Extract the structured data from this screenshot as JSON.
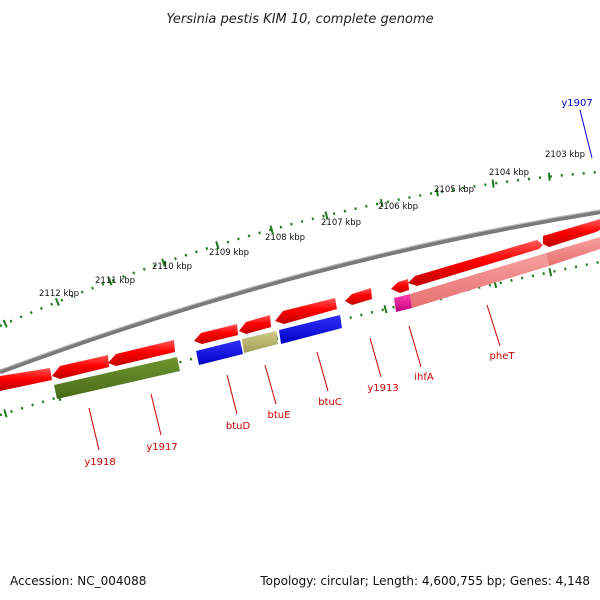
{
  "title": "Yersinia pestis KIM 10, complete genome",
  "ruler": {
    "tick_color": "#1e7a1e",
    "labels": [
      "2103 kbp",
      "2104 kbp",
      "2105 kbp",
      "2106 kbp",
      "2107 kbp",
      "2108 kbp",
      "2109 kbp",
      "2110 kbp",
      "2111 kbp",
      "2112 kbp"
    ]
  },
  "backbone_color": "#808080",
  "genes": [
    {
      "name": "y1907",
      "color": "#0000cc"
    },
    {
      "name": "pheT",
      "color": "#cc0000"
    },
    {
      "name": "ihfA",
      "color": "#cc0000"
    },
    {
      "name": "y1913",
      "color": "#cc0000"
    },
    {
      "name": "btuC",
      "color": "#cc0000"
    },
    {
      "name": "btuE",
      "color": "#cc0000"
    },
    {
      "name": "btuD",
      "color": "#cc0000"
    },
    {
      "name": "y1917",
      "color": "#cc0000"
    },
    {
      "name": "y1918",
      "color": "#cc0000"
    }
  ],
  "feature_colors": {
    "cds": "#e60000",
    "rrna": "#f08080",
    "protein_blue": "#0000dd",
    "protein_olive": "#5a7a1e",
    "protein_khaki": "#b4b06a",
    "magenta": "#e0108a"
  },
  "footer": {
    "accession": "Accession: NC_004088",
    "summary": "Topology: circular; Length: 4,600,755 bp; Genes: 4,148"
  }
}
